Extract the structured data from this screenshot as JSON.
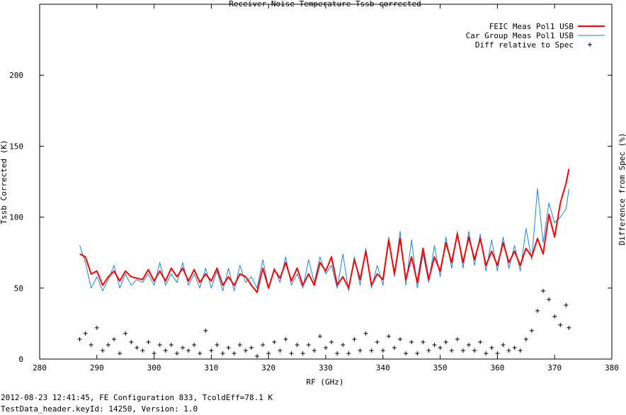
{
  "chart_data": {
    "type": "line",
    "title": "Receiver Noise Temperature Tssb corrected",
    "xlabel": "RF (GHz)",
    "ylabel": "Tssb Corrected (K)",
    "y2label": "Difference from Spec (%)",
    "xlim": [
      280,
      380
    ],
    "ylim": [
      0,
      250
    ],
    "xticks": [
      280,
      290,
      300,
      310,
      320,
      330,
      340,
      350,
      360,
      370,
      380
    ],
    "yticks": [
      0,
      50,
      100,
      150,
      200
    ],
    "grid": false,
    "legend_position": "top-right",
    "series": [
      {
        "name": "FEIC Meas Pol1 USB",
        "style": "line",
        "color": "#ff0000",
        "x": [
          287,
          288,
          289,
          290,
          291,
          292,
          293,
          294,
          295,
          296,
          297,
          298,
          299,
          300,
          301,
          302,
          303,
          304,
          305,
          306,
          307,
          308,
          309,
          310,
          311,
          312,
          313,
          314,
          315,
          316,
          317,
          318,
          319,
          320,
          321,
          322,
          323,
          324,
          325,
          326,
          327,
          328,
          329,
          330,
          331,
          332,
          333,
          334,
          335,
          336,
          337,
          338,
          339,
          340,
          341,
          342,
          343,
          344,
          345,
          346,
          347,
          348,
          349,
          350,
          351,
          352,
          353,
          354,
          355,
          356,
          357,
          358,
          359,
          360,
          361,
          362,
          363,
          364,
          365,
          366,
          367,
          368,
          369,
          370,
          371,
          372,
          372.5
        ],
        "values": [
          74,
          72,
          60,
          62,
          52,
          58,
          62,
          55,
          62,
          58,
          57,
          56,
          63,
          55,
          62,
          55,
          64,
          58,
          64,
          55,
          63,
          54,
          60,
          55,
          64,
          52,
          58,
          52,
          60,
          58,
          52,
          47,
          64,
          50,
          63,
          57,
          68,
          55,
          64,
          52,
          60,
          52,
          68,
          62,
          72,
          52,
          58,
          50,
          70,
          56,
          76,
          52,
          60,
          56,
          84,
          60,
          85,
          56,
          72,
          54,
          78,
          56,
          72,
          62,
          82,
          68,
          88,
          68,
          86,
          70,
          85,
          66,
          76,
          66,
          82,
          68,
          76,
          66,
          78,
          72,
          85,
          74,
          102,
          86,
          110,
          124,
          134
        ]
      },
      {
        "name": "Car Group Meas Pol1 USB",
        "style": "line",
        "color": "#1e82dc",
        "x": [
          287,
          288,
          289,
          290,
          291,
          292,
          293,
          294,
          295,
          296,
          297,
          298,
          299,
          300,
          301,
          302,
          303,
          304,
          305,
          306,
          307,
          308,
          309,
          310,
          311,
          312,
          313,
          314,
          315,
          316,
          317,
          318,
          319,
          320,
          321,
          322,
          323,
          324,
          325,
          326,
          327,
          328,
          329,
          330,
          331,
          332,
          333,
          334,
          335,
          336,
          337,
          338,
          339,
          340,
          341,
          342,
          343,
          344,
          345,
          346,
          347,
          348,
          349,
          350,
          351,
          352,
          353,
          354,
          355,
          356,
          357,
          358,
          359,
          360,
          361,
          362,
          363,
          364,
          365,
          366,
          367,
          368,
          369,
          370,
          371,
          372,
          372.5
        ],
        "values": [
          80,
          68,
          50,
          58,
          48,
          56,
          66,
          50,
          60,
          52,
          56,
          54,
          60,
          52,
          68,
          52,
          60,
          54,
          68,
          52,
          60,
          50,
          64,
          50,
          62,
          48,
          64,
          48,
          66,
          54,
          58,
          50,
          70,
          50,
          64,
          54,
          72,
          52,
          60,
          50,
          70,
          54,
          72,
          60,
          66,
          50,
          74,
          48,
          72,
          52,
          78,
          50,
          66,
          52,
          86,
          58,
          90,
          52,
          84,
          50,
          74,
          54,
          80,
          58,
          86,
          64,
          90,
          64,
          90,
          66,
          88,
          62,
          84,
          62,
          86,
          64,
          80,
          62,
          92,
          70,
          120,
          82,
          110,
          96,
          100,
          106,
          120
        ]
      },
      {
        "name": "Diff relative to Spec",
        "style": "points",
        "color": "#000000",
        "x": [
          287,
          288,
          289,
          290,
          291,
          292,
          293,
          294,
          295,
          296,
          297,
          298,
          299,
          300,
          301,
          302,
          303,
          304,
          305,
          306,
          307,
          308,
          309,
          310,
          311,
          312,
          313,
          314,
          315,
          316,
          317,
          318,
          319,
          320,
          321,
          322,
          323,
          324,
          325,
          326,
          327,
          328,
          329,
          330,
          331,
          332,
          333,
          334,
          335,
          336,
          337,
          338,
          339,
          340,
          341,
          342,
          343,
          344,
          345,
          346,
          347,
          348,
          349,
          350,
          351,
          352,
          353,
          354,
          355,
          356,
          357,
          358,
          359,
          360,
          361,
          362,
          363,
          364,
          365,
          366,
          367,
          368,
          369,
          370,
          371,
          372,
          372.5
        ],
        "values": [
          14,
          18,
          10,
          22,
          6,
          10,
          14,
          4,
          18,
          12,
          8,
          6,
          12,
          4,
          10,
          6,
          10,
          4,
          8,
          6,
          10,
          4,
          20,
          6,
          10,
          4,
          8,
          4,
          10,
          6,
          8,
          2,
          10,
          4,
          12,
          6,
          14,
          4,
          10,
          4,
          10,
          6,
          16,
          8,
          12,
          4,
          10,
          4,
          14,
          6,
          18,
          6,
          12,
          6,
          16,
          8,
          14,
          4,
          12,
          4,
          12,
          6,
          10,
          8,
          12,
          6,
          14,
          6,
          10,
          6,
          12,
          4,
          8,
          4,
          10,
          6,
          8,
          6,
          14,
          20,
          34,
          48,
          42,
          30,
          24,
          38,
          22
        ]
      }
    ]
  },
  "footer": {
    "line1": "2012-08-23 12:41:45, FE Configuration 833, TcoldEff=78.1 K",
    "line2": "TestData_header.keyId: 14250, Version: 1.0"
  }
}
